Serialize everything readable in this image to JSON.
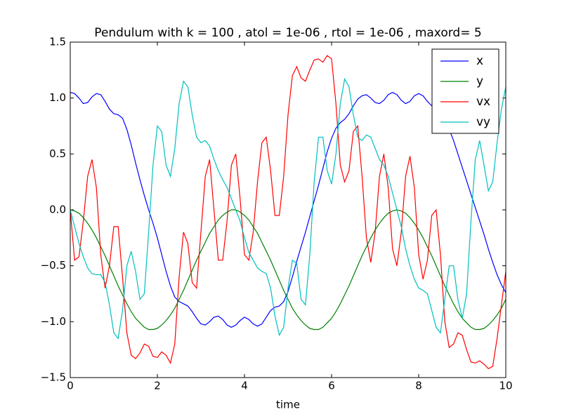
{
  "chart_data": {
    "type": "line",
    "title": "Pendulum with k = 100 , atol = 1e-06 , rtol = 1e-06 , maxord= 5",
    "xlabel": "time",
    "x": [
      0,
      0.1,
      0.2,
      0.3,
      0.4,
      0.5,
      0.6,
      0.7,
      0.8,
      0.9,
      1,
      1.1,
      1.2,
      1.3,
      1.4,
      1.5,
      1.6,
      1.7,
      1.8,
      1.9,
      2,
      2.1,
      2.2,
      2.3,
      2.4,
      2.5,
      2.6,
      2.7,
      2.8,
      2.9,
      3,
      3.1,
      3.2,
      3.3,
      3.4,
      3.5,
      3.6,
      3.7,
      3.8,
      3.9,
      4,
      4.1,
      4.2,
      4.3,
      4.4,
      4.5,
      4.6,
      4.7,
      4.8,
      4.9,
      5,
      5.1,
      5.2,
      5.3,
      5.4,
      5.5,
      5.6,
      5.7,
      5.8,
      5.9,
      6,
      6.1,
      6.2,
      6.3,
      6.4,
      6.5,
      6.6,
      6.7,
      6.8,
      6.9,
      7,
      7.1,
      7.2,
      7.3,
      7.4,
      7.5,
      7.6,
      7.7,
      7.8,
      7.9,
      8,
      8.1,
      8.2,
      8.3,
      8.4,
      8.5,
      8.6,
      8.7,
      8.8,
      8.9,
      9,
      9.1,
      9.2,
      9.3,
      9.4,
      9.5,
      9.6,
      9.7,
      9.8,
      9.9,
      10
    ],
    "series": [
      {
        "name": "x",
        "color": "#0000ff",
        "values": [
          1.05,
          1.04,
          1.0,
          0.95,
          0.96,
          1.01,
          1.04,
          1.03,
          0.97,
          0.9,
          0.86,
          0.85,
          0.82,
          0.72,
          0.58,
          0.42,
          0.27,
          0.13,
          0.0,
          -0.12,
          -0.25,
          -0.4,
          -0.55,
          -0.68,
          -0.78,
          -0.82,
          -0.84,
          -0.86,
          -0.91,
          -0.97,
          -1.02,
          -1.03,
          -1.0,
          -0.96,
          -0.95,
          -0.98,
          -1.03,
          -1.05,
          -1.03,
          -0.99,
          -0.96,
          -0.98,
          -1.02,
          -1.04,
          -1.02,
          -0.96,
          -0.9,
          -0.87,
          -0.86,
          -0.82,
          -0.73,
          -0.6,
          -0.46,
          -0.33,
          -0.2,
          -0.06,
          0.08,
          0.22,
          0.37,
          0.52,
          0.64,
          0.73,
          0.78,
          0.81,
          0.86,
          0.93,
          0.99,
          1.02,
          1.03,
          1.0,
          0.96,
          0.95,
          0.98,
          1.03,
          1.05,
          1.03,
          0.98,
          0.95,
          0.97,
          1.02,
          1.04,
          1.02,
          0.97,
          0.93,
          0.91,
          0.87,
          0.8,
          0.72,
          0.62,
          0.5,
          0.38,
          0.26,
          0.14,
          0.02,
          -0.1,
          -0.22,
          -0.35,
          -0.47,
          -0.58,
          -0.67,
          -0.74
        ]
      },
      {
        "name": "y",
        "color": "#008000",
        "values": [
          0.0,
          -0.01,
          -0.03,
          -0.07,
          -0.12,
          -0.18,
          -0.25,
          -0.33,
          -0.41,
          -0.5,
          -0.59,
          -0.68,
          -0.76,
          -0.84,
          -0.91,
          -0.97,
          -1.01,
          -1.05,
          -1.07,
          -1.07,
          -1.06,
          -1.03,
          -0.99,
          -0.94,
          -0.88,
          -0.8,
          -0.72,
          -0.63,
          -0.54,
          -0.45,
          -0.37,
          -0.29,
          -0.21,
          -0.15,
          -0.09,
          -0.05,
          -0.02,
          0.0,
          0.0,
          -0.02,
          -0.05,
          -0.09,
          -0.15,
          -0.21,
          -0.29,
          -0.37,
          -0.45,
          -0.54,
          -0.63,
          -0.72,
          -0.8,
          -0.88,
          -0.94,
          -0.99,
          -1.03,
          -1.06,
          -1.07,
          -1.07,
          -1.05,
          -1.01,
          -0.97,
          -0.91,
          -0.84,
          -0.76,
          -0.68,
          -0.59,
          -0.5,
          -0.41,
          -0.33,
          -0.25,
          -0.18,
          -0.12,
          -0.07,
          -0.03,
          -0.01,
          0.0,
          -0.01,
          -0.03,
          -0.07,
          -0.12,
          -0.18,
          -0.25,
          -0.33,
          -0.41,
          -0.5,
          -0.59,
          -0.68,
          -0.76,
          -0.84,
          -0.91,
          -0.97,
          -1.01,
          -1.05,
          -1.07,
          -1.07,
          -1.06,
          -1.03,
          -0.99,
          -0.94,
          -0.88,
          -0.8
        ]
      },
      {
        "name": "vx",
        "color": "#ff0000",
        "values": [
          0.0,
          -0.45,
          -0.42,
          -0.1,
          0.3,
          0.45,
          0.2,
          -0.4,
          -0.7,
          -0.5,
          -0.15,
          -0.15,
          -0.6,
          -1.1,
          -1.3,
          -1.33,
          -1.28,
          -1.2,
          -1.22,
          -1.31,
          -1.32,
          -1.27,
          -1.3,
          -1.37,
          -1.2,
          -0.6,
          -0.2,
          -0.3,
          -0.65,
          -0.7,
          -0.2,
          0.3,
          0.45,
          0.0,
          -0.45,
          -0.45,
          -0.1,
          0.4,
          0.5,
          0.1,
          -0.4,
          -0.45,
          -0.2,
          0.25,
          0.6,
          0.65,
          0.35,
          -0.05,
          -0.05,
          0.3,
          0.85,
          1.2,
          1.28,
          1.18,
          1.15,
          1.25,
          1.34,
          1.35,
          1.32,
          1.38,
          1.35,
          0.95,
          0.4,
          0.25,
          0.35,
          0.7,
          0.75,
          0.3,
          -0.25,
          -0.47,
          -0.2,
          0.3,
          0.5,
          0.2,
          -0.35,
          -0.5,
          -0.2,
          0.3,
          0.48,
          0.2,
          -0.4,
          -0.62,
          -0.45,
          -0.05,
          0.0,
          -0.4,
          -1.0,
          -1.23,
          -1.2,
          -1.1,
          -1.12,
          -1.25,
          -1.36,
          -1.37,
          -1.35,
          -1.38,
          -1.42,
          -1.4,
          -1.15,
          -0.85,
          -0.55
        ]
      },
      {
        "name": "vy",
        "color": "#00bfbf",
        "values": [
          0.0,
          -0.15,
          -0.3,
          -0.42,
          -0.52,
          -0.57,
          -0.58,
          -0.58,
          -0.65,
          -0.85,
          -1.1,
          -1.15,
          -0.9,
          -0.5,
          -0.37,
          -0.55,
          -0.8,
          -0.75,
          -0.2,
          0.4,
          0.75,
          0.7,
          0.4,
          0.3,
          0.55,
          0.95,
          1.15,
          1.1,
          0.85,
          0.65,
          0.6,
          0.62,
          0.57,
          0.45,
          0.35,
          0.27,
          0.2,
          0.1,
          0.0,
          -0.1,
          -0.25,
          -0.38,
          -0.45,
          -0.52,
          -0.55,
          -0.57,
          -0.7,
          -0.95,
          -1.12,
          -1.05,
          -0.7,
          -0.45,
          -0.48,
          -0.8,
          -0.85,
          -0.4,
          0.25,
          0.65,
          0.65,
          0.35,
          0.23,
          0.5,
          0.95,
          1.17,
          1.1,
          0.85,
          0.65,
          0.62,
          0.67,
          0.65,
          0.55,
          0.45,
          0.4,
          0.3,
          0.15,
          0.0,
          -0.15,
          -0.35,
          -0.5,
          -0.62,
          -0.7,
          -0.72,
          -0.75,
          -0.9,
          -1.05,
          -1.1,
          -0.8,
          -0.5,
          -0.5,
          -0.8,
          -0.97,
          -0.75,
          -0.1,
          0.45,
          0.62,
          0.4,
          0.17,
          0.25,
          0.6,
          0.9,
          1.1
        ]
      }
    ],
    "xlim": [
      0,
      10
    ],
    "xticks": [
      0,
      2,
      4,
      6,
      8,
      10
    ],
    "ylim": [
      -1.5,
      1.5
    ],
    "yticks": [
      {
        "value": -1.5,
        "label": "−1.5"
      },
      {
        "value": -1.0,
        "label": "−1.0"
      },
      {
        "value": -0.5,
        "label": "−0.5"
      },
      {
        "value": 0.0,
        "label": "0.0"
      },
      {
        "value": 0.5,
        "label": "0.5"
      },
      {
        "value": 1.0,
        "label": "1.0"
      },
      {
        "value": 1.5,
        "label": "1.5"
      }
    ],
    "grid": false,
    "legend": "upper right"
  }
}
